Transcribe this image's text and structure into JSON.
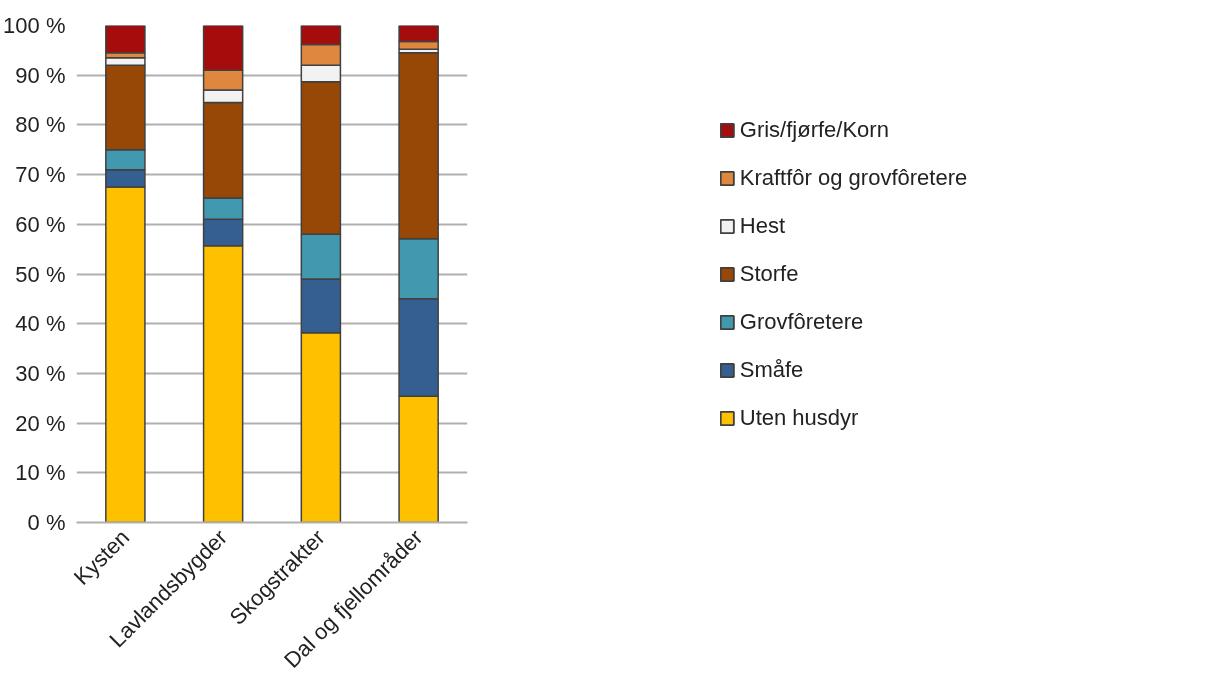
{
  "chart_data": {
    "type": "bar",
    "stacked": true,
    "categories": [
      "Kysten",
      "Lavlandsbygder",
      "Skogstrakter",
      "Dal og fjellområder"
    ],
    "series": [
      {
        "name": "Uten husdyr",
        "color": "#ffc000",
        "values": [
          67.5,
          55.7,
          38.2,
          25.4
        ]
      },
      {
        "name": "Småfe",
        "color": "#355e91",
        "values": [
          3.5,
          5.3,
          10.8,
          19.6
        ]
      },
      {
        "name": "Grovfôretere",
        "color": "#4198af",
        "values": [
          4,
          4.3,
          9,
          12.1
        ]
      },
      {
        "name": "Storfe",
        "color": "#974706",
        "values": [
          17,
          19.2,
          30.7,
          37.4
        ]
      },
      {
        "name": "Hest",
        "color": "#f2f2f2",
        "values": [
          1.5,
          2.5,
          3.3,
          0.7
        ]
      },
      {
        "name": "Kraftfôr og grovfôretere",
        "color": "#e0873f",
        "values": [
          1,
          4,
          4.2,
          1.6
        ]
      },
      {
        "name": "Gris/fjørfe/Korn",
        "color": "#a50d0d",
        "values": [
          5.5,
          9,
          3.8,
          3.2
        ]
      }
    ],
    "ylim": [
      0,
      100
    ],
    "yticks": [
      {
        "value": 0,
        "label": "0 %"
      },
      {
        "value": 10,
        "label": "10 %"
      },
      {
        "value": 20,
        "label": "20 %"
      },
      {
        "value": 30,
        "label": "30 %"
      },
      {
        "value": 40,
        "label": "40 %"
      },
      {
        "value": 50,
        "label": "50 %"
      },
      {
        "value": 60,
        "label": "60 %"
      },
      {
        "value": 70,
        "label": "70 %"
      },
      {
        "value": 80,
        "label": "80 %"
      },
      {
        "value": 90,
        "label": "90 %"
      },
      {
        "value": 100,
        "label": "100 %"
      }
    ],
    "grid": "y",
    "legend": "right"
  }
}
